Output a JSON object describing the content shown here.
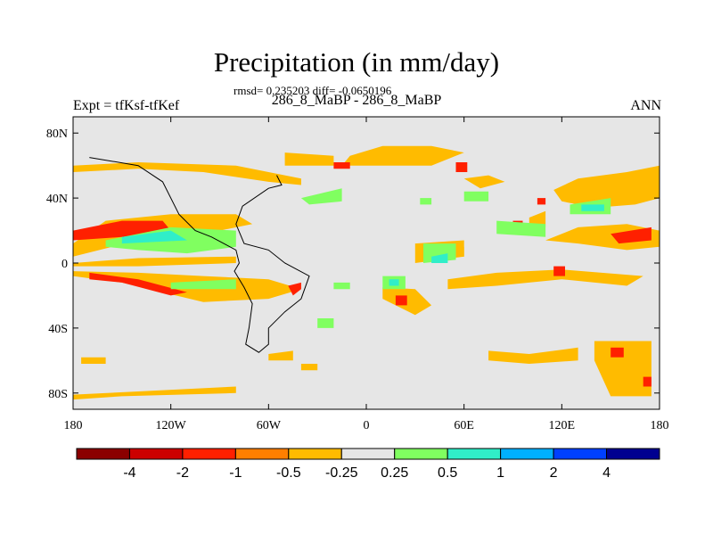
{
  "chart_data": {
    "type": "heatmap",
    "title": "Precipitation (in mm/day)",
    "stats_line": "rmsd= 0.235203 diff= -0.0650196",
    "case_label": "286_8_MaBP - 286_8_MaBP",
    "experiment_label": "Expt = tfKsf-tfKef",
    "season": "ANN",
    "xlim": [
      -180,
      180
    ],
    "ylim": [
      -90,
      90
    ],
    "x_ticks": [
      {
        "value": -180,
        "label": "180"
      },
      {
        "value": -120,
        "label": "120W"
      },
      {
        "value": -60,
        "label": "60W"
      },
      {
        "value": 0,
        "label": "0"
      },
      {
        "value": 60,
        "label": "60E"
      },
      {
        "value": 120,
        "label": "120E"
      },
      {
        "value": 180,
        "label": "180"
      }
    ],
    "y_ticks": [
      {
        "value": 80,
        "label": "80N"
      },
      {
        "value": 40,
        "label": "40N"
      },
      {
        "value": 0,
        "label": "0"
      },
      {
        "value": -40,
        "label": "40S"
      },
      {
        "value": -80,
        "label": "80S"
      }
    ],
    "colorbar": {
      "levels": [
        -4,
        -2,
        -1,
        -0.5,
        -0.25,
        0.25,
        0.5,
        1,
        2,
        4
      ],
      "level_labels": [
        "-4",
        "-2",
        "-1",
        "-0.5",
        "-0.25",
        "0.25",
        "0.5",
        "1",
        "2",
        "4"
      ],
      "colors": [
        "#8b0000",
        "#cc0000",
        "#ff2000",
        "#ff7f00",
        "#ffbb00",
        "#e6e6e6",
        "#80ff60",
        "#30eec8",
        "#00b0ff",
        "#0040ff",
        "#000090"
      ]
    },
    "background_color": "#e6e6e6",
    "regions": [
      {
        "cls": "-0.5",
        "pts": [
          [
            -180,
            56
          ],
          [
            -140,
            58
          ],
          [
            -100,
            56
          ],
          [
            -60,
            50
          ],
          [
            -40,
            48
          ],
          [
            -40,
            52
          ],
          [
            -80,
            60
          ],
          [
            -140,
            62
          ],
          [
            -180,
            60
          ]
        ]
      },
      {
        "cls": "-0.5",
        "pts": [
          [
            -50,
            68
          ],
          [
            -20,
            66
          ],
          [
            -20,
            60
          ],
          [
            -50,
            60
          ]
        ]
      },
      {
        "cls": "-0.5",
        "pts": [
          [
            -15,
            60
          ],
          [
            40,
            60
          ],
          [
            60,
            68
          ],
          [
            40,
            72
          ],
          [
            10,
            72
          ],
          [
            -10,
            66
          ]
        ]
      },
      {
        "cls": "-0.5",
        "pts": [
          [
            -180,
            12
          ],
          [
            -160,
            26
          ],
          [
            -120,
            30
          ],
          [
            -80,
            30
          ],
          [
            -70,
            24
          ],
          [
            -100,
            18
          ],
          [
            -140,
            14
          ],
          [
            -180,
            4
          ]
        ]
      },
      {
        "cls": "-0.5",
        "pts": [
          [
            -180,
            0
          ],
          [
            -140,
            3
          ],
          [
            -80,
            4
          ],
          [
            -80,
            0
          ],
          [
            -140,
            -2
          ],
          [
            -180,
            -2
          ]
        ]
      },
      {
        "cls": "-0.5",
        "pts": [
          [
            -180,
            -8
          ],
          [
            -150,
            -12
          ],
          [
            -100,
            -24
          ],
          [
            -60,
            -22
          ],
          [
            -40,
            -16
          ],
          [
            -60,
            -10
          ],
          [
            -100,
            -8
          ],
          [
            -140,
            -6
          ],
          [
            -180,
            -5
          ]
        ]
      },
      {
        "cls": "-0.5",
        "pts": [
          [
            -180,
            -84
          ],
          [
            -150,
            -82
          ],
          [
            -80,
            -80
          ],
          [
            -80,
            -76
          ],
          [
            -140,
            -79
          ],
          [
            -180,
            -81
          ]
        ]
      },
      {
        "cls": "-0.5",
        "pts": [
          [
            -175,
            -58
          ],
          [
            -160,
            -58
          ],
          [
            -160,
            -62
          ],
          [
            -175,
            -62
          ]
        ]
      },
      {
        "cls": "-0.5",
        "pts": [
          [
            -60,
            -56
          ],
          [
            -45,
            -54
          ],
          [
            -45,
            -60
          ],
          [
            -60,
            -60
          ]
        ]
      },
      {
        "cls": "-0.5",
        "pts": [
          [
            -40,
            -62
          ],
          [
            -30,
            -62
          ],
          [
            -30,
            -66
          ],
          [
            -40,
            -66
          ]
        ]
      },
      {
        "cls": "-0.5",
        "pts": [
          [
            10,
            -15
          ],
          [
            30,
            -16
          ],
          [
            40,
            -26
          ],
          [
            30,
            -32
          ],
          [
            10,
            -22
          ]
        ]
      },
      {
        "cls": "-0.5",
        "pts": [
          [
            50,
            -10
          ],
          [
            80,
            -6
          ],
          [
            120,
            -4
          ],
          [
            170,
            -8
          ],
          [
            160,
            -14
          ],
          [
            120,
            -10
          ],
          [
            80,
            -14
          ],
          [
            50,
            -16
          ]
        ]
      },
      {
        "cls": "-0.5",
        "pts": [
          [
            75,
            -54
          ],
          [
            100,
            -56
          ],
          [
            130,
            -52
          ],
          [
            130,
            -60
          ],
          [
            100,
            -62
          ],
          [
            75,
            -60
          ]
        ]
      },
      {
        "cls": "-0.5",
        "pts": [
          [
            140,
            -48
          ],
          [
            175,
            -48
          ],
          [
            175,
            -82
          ],
          [
            150,
            -82
          ],
          [
            140,
            -60
          ]
        ]
      },
      {
        "cls": "-0.5",
        "pts": [
          [
            115,
            45
          ],
          [
            130,
            52
          ],
          [
            160,
            56
          ],
          [
            180,
            60
          ],
          [
            180,
            40
          ],
          [
            165,
            36
          ],
          [
            140,
            34
          ],
          [
            120,
            38
          ]
        ]
      },
      {
        "cls": "-0.5",
        "pts": [
          [
            110,
            14
          ],
          [
            130,
            22
          ],
          [
            160,
            24
          ],
          [
            180,
            20
          ],
          [
            180,
            10
          ],
          [
            160,
            8
          ],
          [
            130,
            12
          ]
        ]
      },
      {
        "cls": "-0.5",
        "pts": [
          [
            60,
            52
          ],
          [
            75,
            54
          ],
          [
            85,
            50
          ],
          [
            70,
            46
          ]
        ]
      },
      {
        "cls": "-0.5",
        "pts": [
          [
            30,
            12
          ],
          [
            60,
            14
          ],
          [
            60,
            4
          ],
          [
            30,
            0
          ]
        ]
      },
      {
        "cls": "-0.5",
        "pts": [
          [
            100,
            28
          ],
          [
            110,
            32
          ],
          [
            110,
            22
          ],
          [
            100,
            20
          ]
        ]
      },
      {
        "cls": "-0.5",
        "pts": [
          [
            55,
            8
          ],
          [
            60,
            10
          ],
          [
            60,
            4
          ],
          [
            55,
            4
          ]
        ]
      },
      {
        "cls": "-1",
        "pts": [
          [
            -180,
            20
          ],
          [
            -150,
            26
          ],
          [
            -125,
            26
          ],
          [
            -120,
            20
          ],
          [
            -150,
            16
          ],
          [
            -180,
            14
          ]
        ]
      },
      {
        "cls": "-1",
        "pts": [
          [
            -170,
            -10
          ],
          [
            -150,
            -12
          ],
          [
            -120,
            -20
          ],
          [
            -110,
            -18
          ],
          [
            -140,
            -10
          ],
          [
            -170,
            -6
          ]
        ]
      },
      {
        "cls": "-1",
        "pts": [
          [
            -40,
            -12
          ],
          [
            -40,
            -16
          ],
          [
            -45,
            -20
          ],
          [
            -48,
            -14
          ]
        ]
      },
      {
        "cls": "-1",
        "pts": [
          [
            18,
            -20
          ],
          [
            25,
            -20
          ],
          [
            25,
            -26
          ],
          [
            18,
            -26
          ]
        ]
      },
      {
        "cls": "-1",
        "pts": [
          [
            115,
            -2
          ],
          [
            122,
            -2
          ],
          [
            122,
            -8
          ],
          [
            115,
            -8
          ]
        ]
      },
      {
        "cls": "-1",
        "pts": [
          [
            150,
            18
          ],
          [
            175,
            22
          ],
          [
            175,
            14
          ],
          [
            155,
            12
          ]
        ]
      },
      {
        "cls": "-1",
        "pts": [
          [
            55,
            62
          ],
          [
            62,
            62
          ],
          [
            62,
            56
          ],
          [
            55,
            56
          ]
        ]
      },
      {
        "cls": "-1",
        "pts": [
          [
            105,
            40
          ],
          [
            110,
            40
          ],
          [
            110,
            36
          ],
          [
            105,
            36
          ]
        ]
      },
      {
        "cls": "-1",
        "pts": [
          [
            90,
            26
          ],
          [
            96,
            26
          ],
          [
            96,
            22
          ],
          [
            90,
            22
          ]
        ]
      },
      {
        "cls": "-1",
        "pts": [
          [
            170,
            -70
          ],
          [
            175,
            -70
          ],
          [
            175,
            -76
          ],
          [
            170,
            -76
          ]
        ]
      },
      {
        "cls": "-1",
        "pts": [
          [
            150,
            -52
          ],
          [
            158,
            -52
          ],
          [
            158,
            -58
          ],
          [
            150,
            -58
          ]
        ]
      },
      {
        "cls": "-1",
        "pts": [
          [
            -20,
            62
          ],
          [
            -10,
            62
          ],
          [
            -10,
            58
          ],
          [
            -20,
            58
          ]
        ]
      },
      {
        "cls": "0.5",
        "pts": [
          [
            -160,
            14
          ],
          [
            -120,
            22
          ],
          [
            -80,
            20
          ],
          [
            -80,
            10
          ],
          [
            -110,
            6
          ],
          [
            -140,
            8
          ],
          [
            -160,
            10
          ]
        ]
      },
      {
        "cls": "0.5",
        "pts": [
          [
            -120,
            -12
          ],
          [
            -80,
            -10
          ],
          [
            -80,
            -16
          ],
          [
            -120,
            -16
          ]
        ]
      },
      {
        "cls": "0.5",
        "pts": [
          [
            -40,
            40
          ],
          [
            -15,
            46
          ],
          [
            -15,
            38
          ],
          [
            -35,
            36
          ]
        ]
      },
      {
        "cls": "0.5",
        "pts": [
          [
            -20,
            -12
          ],
          [
            -10,
            -12
          ],
          [
            -10,
            -16
          ],
          [
            -20,
            -16
          ]
        ]
      },
      {
        "cls": "0.5",
        "pts": [
          [
            -30,
            -34
          ],
          [
            -20,
            -34
          ],
          [
            -20,
            -40
          ],
          [
            -30,
            -40
          ]
        ]
      },
      {
        "cls": "0.5",
        "pts": [
          [
            10,
            -8
          ],
          [
            24,
            -8
          ],
          [
            24,
            -16
          ],
          [
            10,
            -16
          ]
        ]
      },
      {
        "cls": "0.5",
        "pts": [
          [
            35,
            12
          ],
          [
            55,
            12
          ],
          [
            55,
            2
          ],
          [
            35,
            0
          ]
        ]
      },
      {
        "cls": "0.5",
        "pts": [
          [
            80,
            26
          ],
          [
            110,
            24
          ],
          [
            110,
            16
          ],
          [
            80,
            18
          ]
        ]
      },
      {
        "cls": "0.5",
        "pts": [
          [
            33,
            40
          ],
          [
            40,
            40
          ],
          [
            40,
            36
          ],
          [
            33,
            36
          ]
        ]
      },
      {
        "cls": "0.5",
        "pts": [
          [
            60,
            44
          ],
          [
            75,
            44
          ],
          [
            75,
            38
          ],
          [
            60,
            38
          ]
        ]
      },
      {
        "cls": "0.5",
        "pts": [
          [
            125,
            36
          ],
          [
            150,
            40
          ],
          [
            150,
            30
          ],
          [
            125,
            30
          ]
        ]
      },
      {
        "cls": "1",
        "pts": [
          [
            -150,
            16
          ],
          [
            -120,
            20
          ],
          [
            -110,
            14
          ],
          [
            -150,
            12
          ]
        ]
      },
      {
        "cls": "1",
        "pts": [
          [
            14,
            -10
          ],
          [
            20,
            -10
          ],
          [
            20,
            -14
          ],
          [
            14,
            -14
          ]
        ]
      },
      {
        "cls": "1",
        "pts": [
          [
            40,
            4
          ],
          [
            50,
            6
          ],
          [
            50,
            0
          ],
          [
            40,
            0
          ]
        ]
      },
      {
        "cls": "1",
        "pts": [
          [
            132,
            36
          ],
          [
            146,
            36
          ],
          [
            146,
            32
          ],
          [
            132,
            32
          ]
        ]
      }
    ],
    "coastlines": [
      [
        [
          -170,
          65
        ],
        [
          -140,
          60
        ],
        [
          -125,
          50
        ],
        [
          -115,
          30
        ],
        [
          -105,
          20
        ],
        [
          -95,
          16
        ],
        [
          -80,
          8
        ],
        [
          -78,
          0
        ],
        [
          -81,
          -5
        ],
        [
          -75,
          -15
        ],
        [
          -70,
          -25
        ],
        [
          -72,
          -40
        ],
        [
          -74,
          -50
        ],
        [
          -66,
          -55
        ],
        [
          -60,
          -50
        ],
        [
          -60,
          -40
        ],
        [
          -50,
          -30
        ],
        [
          -40,
          -22
        ],
        [
          -35,
          -8
        ],
        [
          -50,
          0
        ],
        [
          -60,
          8
        ],
        [
          -75,
          12
        ],
        [
          -80,
          24
        ],
        [
          -76,
          35
        ],
        [
          -60,
          46
        ],
        [
          -52,
          48
        ],
        [
          -55,
          54
        ]
      ]
    ],
    "coastline_color": "#000000"
  }
}
